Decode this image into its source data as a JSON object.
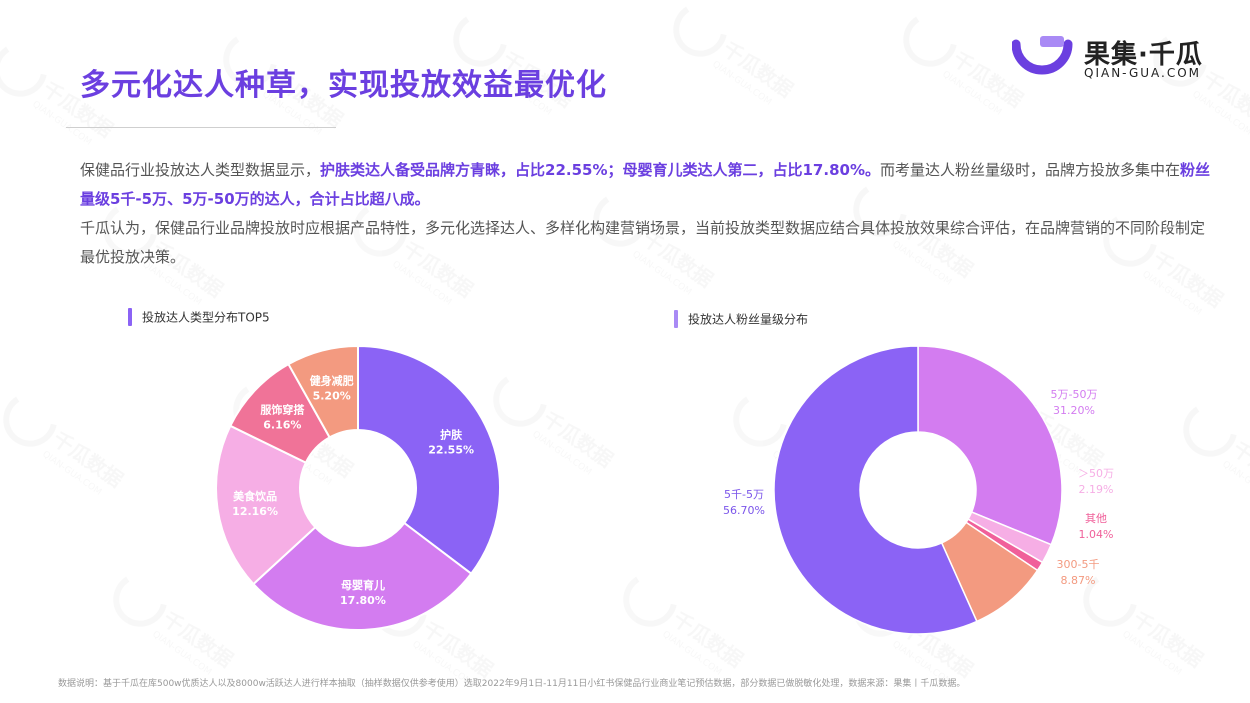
{
  "title": "多元化达人种草，实现投放效益最优化",
  "logo": {
    "name": "果集·千瓜",
    "sub": "QIAN-GUA.COM"
  },
  "body": {
    "p1_a": "保健品行业投放达人类型数据显示，",
    "p1_b": "护肤类达人备受品牌方青睐，占比22.55%；母婴育儿类达人第二，占比17.80%。",
    "p1_c": "而考量达人粉丝量级时，品牌方投放多集中在",
    "p1_d": "粉丝量级5千-5万、5万-50万的达人，合计占比超八成。",
    "p2": "千瓜认为，保健品行业品牌投放时应根据产品特性，多元化选择达人、多样化构建营销场景，当前投放类型数据应结合具体投放效果综合评估，在品牌营销的不同阶段制定最优投放决策。"
  },
  "chart_data": [
    {
      "type": "pie",
      "title": "投放达人类型分布TOP5",
      "donut": true,
      "slices": [
        {
          "label": "护肤",
          "value": 22.55,
          "display": "22.55%",
          "color": "#8b63f5"
        },
        {
          "label": "母婴育儿",
          "value": 17.8,
          "display": "17.80%",
          "color": "#d37cf0"
        },
        {
          "label": "美食饮品",
          "value": 12.16,
          "display": "12.16%",
          "color": "#f6aee5"
        },
        {
          "label": "服饰穿搭",
          "value": 6.16,
          "display": "6.16%",
          "color": "#f07398"
        },
        {
          "label": "健身减肥",
          "value": 5.2,
          "display": "5.20%",
          "color": "#f39a80"
        }
      ]
    },
    {
      "type": "pie",
      "title": "投放达人粉丝量级分布",
      "donut": true,
      "slices": [
        {
          "label": "5万-50万",
          "value": 31.2,
          "display": "31.20%",
          "color": "#d37cf0"
        },
        {
          "label": "＞50万",
          "value": 2.19,
          "display": "2.19%",
          "color": "#f6aee5"
        },
        {
          "label": "其他",
          "value": 1.04,
          "display": "1.04%",
          "color": "#f0609a"
        },
        {
          "label": "300-5千",
          "value": 8.87,
          "display": "8.87%",
          "color": "#f39a80"
        },
        {
          "label": "5千-5万",
          "value": 56.7,
          "display": "56.70%",
          "color": "#8b63f5"
        }
      ]
    }
  ],
  "footnote": "数据说明：基于千瓜在库500w优质达人以及8000w活跃达人进行样本抽取（抽样数据仅供参考使用）选取2022年9月1日-11月11日小红书保健品行业商业笔记预估数据，部分数据已做脱敏化处理，数据来源：果集丨千瓜数据。",
  "watermark": {
    "text1": "千瓜数据",
    "text2": "QIAN-GUA.COM"
  },
  "colors": {
    "brand": "#6b3fe0",
    "body_text": "#555555"
  }
}
